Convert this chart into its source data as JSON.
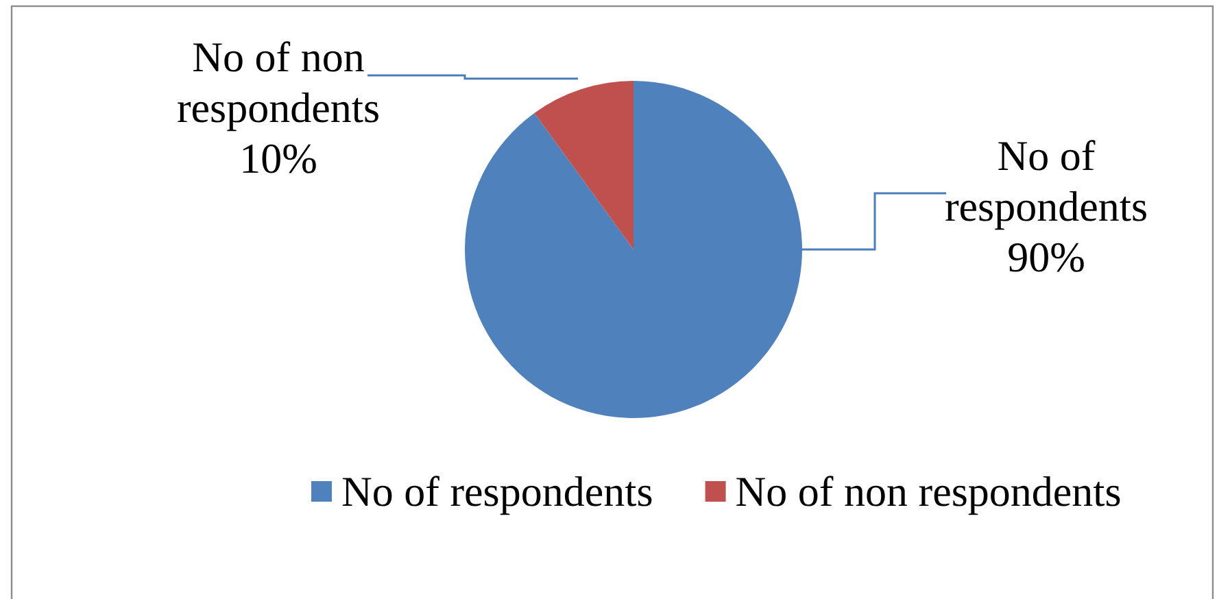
{
  "chart_data": {
    "type": "pie",
    "categories": [
      "No of respondents",
      "No of non respondents"
    ],
    "values": [
      90,
      10
    ],
    "colors": [
      "#4f81bd",
      "#c0504d"
    ],
    "value_labels": [
      "90%",
      "10%"
    ],
    "legend": "bottom"
  }
}
